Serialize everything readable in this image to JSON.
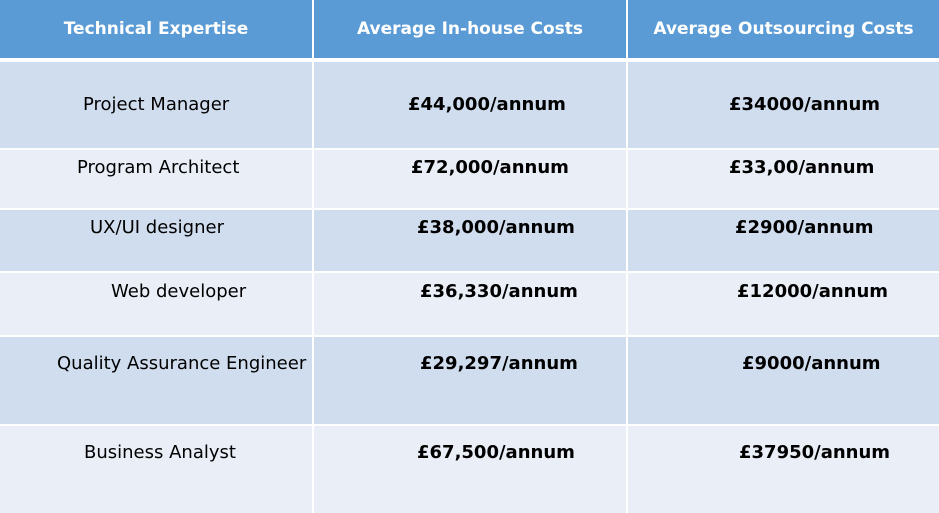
{
  "table": {
    "headers": [
      "Technical Expertise",
      "Average In-house Costs",
      "Average Outsourcing Costs"
    ],
    "rows": [
      [
        "Project Manager",
        "£44,000/annum",
        "£34000/annum"
      ],
      [
        "Program Architect",
        "£72,000/annum",
        "£33,00/annum"
      ],
      [
        "UX/UI designer",
        "£38,000/annum",
        "£2900/annum"
      ],
      [
        "Web developer",
        "£36,330/annum",
        "£12000/annum"
      ],
      [
        "Quality Assurance Engineer",
        "£29,297/annum",
        "£9000/annum"
      ],
      [
        "Business Analyst",
        "£67,500/annum",
        "£37950/annum"
      ]
    ]
  },
  "colors": {
    "header_bg": "#5b9bd5",
    "row_dark": "#d0ddee",
    "row_light": "#e9eef7"
  }
}
